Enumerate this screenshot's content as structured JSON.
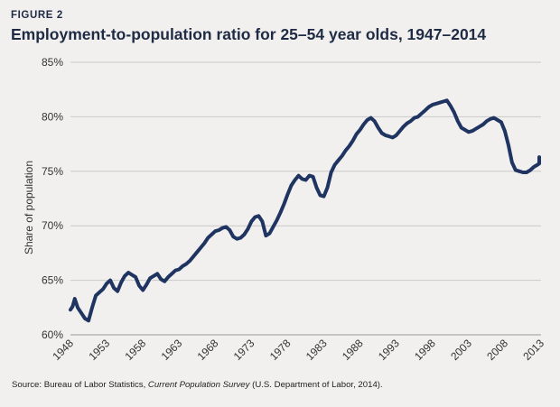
{
  "figure_label": "FIGURE 2",
  "source": {
    "prefix": "Source: Bureau of Labor Statistics, ",
    "italic": "Current Population Survey",
    "suffix": " (U.S. Department of Labor, 2014)."
  },
  "colors": {
    "line": "#1f3461",
    "grid": "#c9c9c9",
    "background": "#f1f0ee",
    "title": "#1f2b45"
  },
  "chart_data": {
    "type": "line",
    "title": "Employment-to-population ratio for 25–54 year olds, 1947–2014",
    "xlabel": "",
    "ylabel": "Share of population",
    "xlim": [
      1948,
      2013
    ],
    "ylim": [
      60,
      85
    ],
    "x_ticks": [
      1948,
      1953,
      1958,
      1963,
      1968,
      1973,
      1978,
      1983,
      1988,
      1993,
      1998,
      2003,
      2008,
      2013
    ],
    "y_ticks": [
      60,
      65,
      70,
      75,
      80,
      85
    ],
    "y_tick_labels": [
      "60%",
      "65%",
      "70%",
      "75%",
      "80%",
      "85%"
    ],
    "grid": "horizontal",
    "legend": "none",
    "series": [
      {
        "x": [
          1948.0,
          1948.3,
          1948.6,
          1949.0,
          1949.5,
          1950.0,
          1950.5,
          1951.0,
          1951.5,
          1952.0,
          1952.5,
          1953.0,
          1953.5,
          1954.0,
          1954.5,
          1955.0,
          1955.5,
          1956.0,
          1956.5,
          1957.0,
          1957.5,
          1958.0,
          1958.5,
          1959.0,
          1959.5,
          1960.0,
          1960.5,
          1961.0,
          1961.5,
          1962.0,
          1962.5,
          1963.0,
          1963.5,
          1964.0,
          1964.5,
          1965.0,
          1965.5,
          1966.0,
          1966.5,
          1967.0,
          1967.5,
          1968.0,
          1968.5,
          1969.0,
          1969.5,
          1970.0,
          1970.5,
          1971.0,
          1971.5,
          1972.0,
          1972.5,
          1973.0,
          1973.5,
          1974.0,
          1974.5,
          1975.0,
          1975.5,
          1976.0,
          1976.5,
          1977.0,
          1977.5,
          1978.0,
          1978.5,
          1979.0,
          1979.5,
          1980.0,
          1980.5,
          1981.0,
          1981.5,
          1982.0,
          1982.5,
          1983.0,
          1983.5,
          1984.0,
          1984.5,
          1985.0,
          1985.5,
          1986.0,
          1986.5,
          1987.0,
          1987.5,
          1988.0,
          1988.5,
          1989.0,
          1989.5,
          1990.0,
          1990.5,
          1991.0,
          1991.5,
          1992.0,
          1992.5,
          1993.0,
          1993.5,
          1994.0,
          1994.5,
          1995.0,
          1995.5,
          1996.0,
          1996.5,
          1997.0,
          1997.5,
          1998.0,
          1998.5,
          1999.0,
          1999.5,
          2000.0,
          2000.5,
          2001.0,
          2001.5,
          2002.0,
          2002.5,
          2003.0,
          2003.5,
          2004.0,
          2004.5,
          2005.0,
          2005.5,
          2006.0,
          2006.5,
          2007.0,
          2007.5,
          2008.0,
          2008.5,
          2009.0,
          2009.5,
          2010.0,
          2010.5,
          2011.0,
          2011.5,
          2012.0,
          2012.5,
          2013.0,
          2013.5,
          2014.0,
          2014.3
        ],
        "values": [
          62.3,
          62.6,
          63.3,
          62.5,
          62.0,
          61.5,
          61.3,
          62.5,
          63.6,
          63.9,
          64.2,
          64.7,
          65.0,
          64.3,
          64.0,
          64.8,
          65.4,
          65.7,
          65.5,
          65.3,
          64.5,
          64.1,
          64.6,
          65.2,
          65.4,
          65.6,
          65.1,
          64.9,
          65.3,
          65.6,
          65.9,
          66.0,
          66.3,
          66.5,
          66.8,
          67.2,
          67.6,
          68.0,
          68.4,
          68.9,
          69.2,
          69.5,
          69.6,
          69.8,
          69.9,
          69.6,
          69.0,
          68.8,
          68.9,
          69.2,
          69.7,
          70.4,
          70.8,
          70.9,
          70.4,
          69.1,
          69.3,
          69.9,
          70.5,
          71.2,
          72.0,
          72.9,
          73.7,
          74.2,
          74.6,
          74.3,
          74.2,
          74.6,
          74.5,
          73.5,
          72.8,
          72.7,
          73.5,
          74.9,
          75.6,
          76.0,
          76.4,
          76.9,
          77.3,
          77.8,
          78.4,
          78.8,
          79.3,
          79.7,
          79.9,
          79.6,
          79.0,
          78.5,
          78.3,
          78.2,
          78.1,
          78.3,
          78.7,
          79.1,
          79.4,
          79.6,
          79.9,
          80.0,
          80.3,
          80.6,
          80.9,
          81.1,
          81.2,
          81.3,
          81.4,
          81.5,
          81.0,
          80.4,
          79.6,
          79.0,
          78.8,
          78.6,
          78.7,
          78.9,
          79.1,
          79.3,
          79.6,
          79.8,
          79.9,
          79.7,
          79.5,
          78.7,
          77.4,
          75.8,
          75.1,
          75.0,
          74.9,
          74.9,
          75.1,
          75.4,
          75.6,
          75.7,
          75.8,
          75.9,
          76.3
        ]
      }
    ]
  }
}
